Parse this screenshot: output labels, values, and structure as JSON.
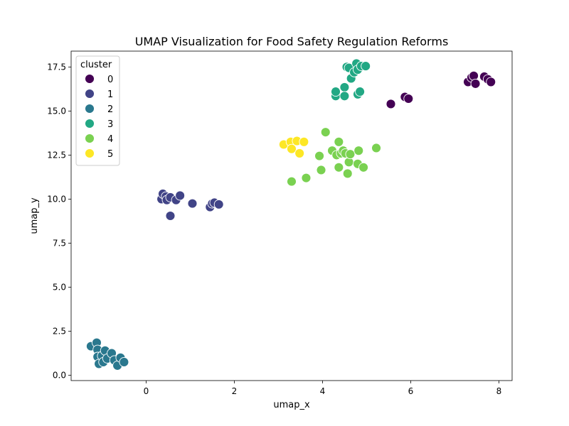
{
  "chart_data": {
    "type": "scatter",
    "title": "UMAP Visualization for Food Safety Regulation Reforms",
    "xlabel": "umap_x",
    "ylabel": "umap_y",
    "xlim": [
      -1.7,
      8.3
    ],
    "ylim": [
      -0.3,
      18.4
    ],
    "xticks": [
      0,
      2,
      4,
      6,
      8
    ],
    "xtick_labels": [
      "0",
      "2",
      "4",
      "6",
      "8"
    ],
    "yticks": [
      0.0,
      2.5,
      5.0,
      7.5,
      10.0,
      12.5,
      15.0,
      17.5
    ],
    "ytick_labels": [
      "0.0",
      "2.5",
      "5.0",
      "7.5",
      "10.0",
      "12.5",
      "15.0",
      "17.5"
    ],
    "grid": false,
    "legend": {
      "title": "cluster",
      "position": "upper-left"
    },
    "series": [
      {
        "name": "0",
        "color": "#440154",
        "points": [
          [
            5.55,
            15.4
          ],
          [
            5.87,
            15.8
          ],
          [
            5.95,
            15.7
          ],
          [
            7.3,
            16.65
          ],
          [
            7.38,
            16.9
          ],
          [
            7.43,
            17.0
          ],
          [
            7.47,
            16.55
          ],
          [
            7.67,
            16.95
          ],
          [
            7.75,
            16.8
          ],
          [
            7.82,
            16.65
          ]
        ]
      },
      {
        "name": "1",
        "color": "#414487",
        "points": [
          [
            0.35,
            10.0
          ],
          [
            0.38,
            10.3
          ],
          [
            0.45,
            10.15
          ],
          [
            0.47,
            9.95
          ],
          [
            0.55,
            10.1
          ],
          [
            0.55,
            9.05
          ],
          [
            0.68,
            9.95
          ],
          [
            0.77,
            10.2
          ],
          [
            1.05,
            9.75
          ],
          [
            1.45,
            9.55
          ],
          [
            1.5,
            9.75
          ],
          [
            1.55,
            9.8
          ],
          [
            1.65,
            9.7
          ]
        ]
      },
      {
        "name": "2",
        "color": "#2a788e",
        "points": [
          [
            -1.25,
            1.65
          ],
          [
            -1.12,
            1.85
          ],
          [
            -1.1,
            1.45
          ],
          [
            -1.1,
            1.05
          ],
          [
            -1.07,
            0.65
          ],
          [
            -1.0,
            1.1
          ],
          [
            -0.97,
            0.75
          ],
          [
            -0.93,
            1.4
          ],
          [
            -0.88,
            0.95
          ],
          [
            -0.78,
            1.25
          ],
          [
            -0.72,
            0.85
          ],
          [
            -0.65,
            0.55
          ],
          [
            -0.58,
            1.0
          ],
          [
            -0.5,
            0.75
          ]
        ]
      },
      {
        "name": "3",
        "color": "#22a884",
        "points": [
          [
            4.3,
            15.85
          ],
          [
            4.3,
            16.1
          ],
          [
            4.5,
            16.35
          ],
          [
            4.5,
            15.85
          ],
          [
            4.55,
            17.5
          ],
          [
            4.6,
            17.45
          ],
          [
            4.65,
            16.85
          ],
          [
            4.72,
            17.2
          ],
          [
            4.77,
            17.7
          ],
          [
            4.8,
            17.35
          ],
          [
            4.8,
            15.95
          ],
          [
            4.85,
            16.1
          ],
          [
            4.88,
            17.55
          ],
          [
            4.98,
            17.55
          ]
        ]
      },
      {
        "name": "4",
        "color": "#7ad151",
        "points": [
          [
            3.3,
            11.0
          ],
          [
            3.63,
            11.2
          ],
          [
            3.93,
            12.45
          ],
          [
            3.97,
            11.65
          ],
          [
            4.07,
            13.8
          ],
          [
            4.22,
            12.75
          ],
          [
            4.32,
            12.5
          ],
          [
            4.37,
            13.25
          ],
          [
            4.37,
            11.8
          ],
          [
            4.42,
            12.6
          ],
          [
            4.47,
            12.75
          ],
          [
            4.52,
            12.6
          ],
          [
            4.57,
            11.45
          ],
          [
            4.6,
            12.1
          ],
          [
            4.63,
            12.55
          ],
          [
            4.82,
            12.75
          ],
          [
            4.8,
            12.0
          ],
          [
            4.93,
            11.8
          ],
          [
            5.22,
            12.9
          ]
        ]
      },
      {
        "name": "5",
        "color": "#fde725",
        "points": [
          [
            3.12,
            13.1
          ],
          [
            3.28,
            13.25
          ],
          [
            3.3,
            12.85
          ],
          [
            3.42,
            13.3
          ],
          [
            3.48,
            12.6
          ],
          [
            3.58,
            13.25
          ]
        ]
      }
    ]
  }
}
